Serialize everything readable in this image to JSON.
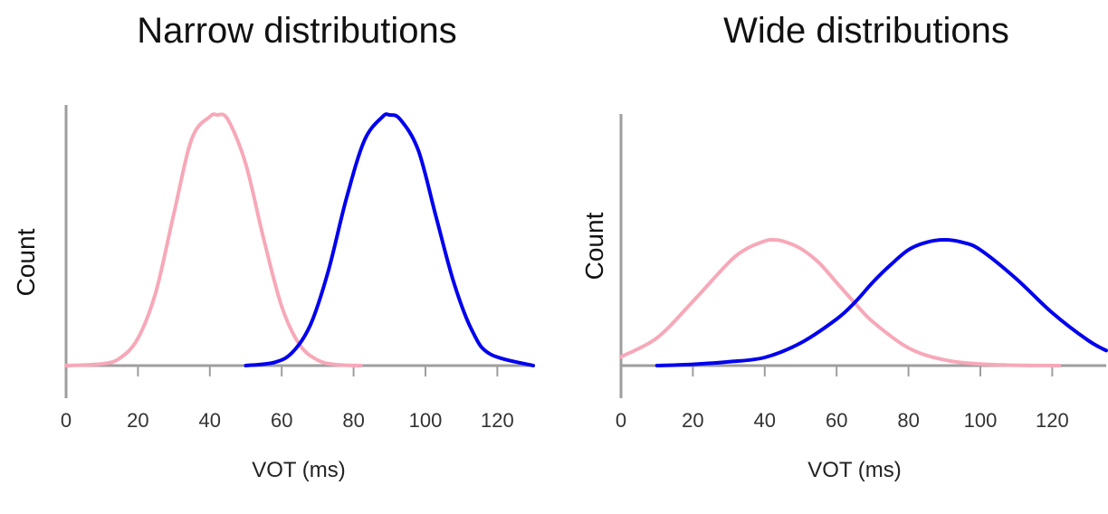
{
  "chart_data": [
    {
      "type": "line",
      "title": "Narrow distributions",
      "xlabel": "VOT (ms)",
      "ylabel": "Count",
      "xlim": [
        0,
        130
      ],
      "ylim": [
        0,
        1
      ],
      "x_ticks": [
        0,
        20,
        40,
        60,
        80,
        100,
        120
      ],
      "grid": false,
      "series": [
        {
          "color": "#f7a8b8",
          "x": [
            0,
            10,
            15,
            20,
            25,
            30,
            35,
            40,
            42,
            45,
            50,
            55,
            60,
            65,
            70,
            75,
            82
          ],
          "values": [
            0.0,
            0.007,
            0.03,
            0.109,
            0.295,
            0.607,
            0.906,
            0.993,
            1.0,
            0.982,
            0.804,
            0.504,
            0.236,
            0.083,
            0.022,
            0.004,
            0.0
          ]
        },
        {
          "color": "#0000ee",
          "x": [
            50,
            58,
            63,
            68,
            73,
            78,
            83,
            88,
            90,
            93,
            98,
            103,
            108,
            113,
            118,
            130
          ],
          "values": [
            0.0,
            0.013,
            0.053,
            0.163,
            0.379,
            0.667,
            0.898,
            0.992,
            1.0,
            0.982,
            0.859,
            0.591,
            0.326,
            0.139,
            0.046,
            0.0
          ]
        }
      ]
    },
    {
      "type": "line",
      "title": "Wide distributions",
      "xlabel": "VOT (ms)",
      "ylabel": "Count",
      "xlim": [
        0,
        135
      ],
      "ylim": [
        0,
        1
      ],
      "x_ticks": [
        0,
        20,
        40,
        60,
        80,
        100,
        120
      ],
      "grid": false,
      "series": [
        {
          "color": "#f7a8b8",
          "x": [
            0,
            10,
            20,
            30,
            35,
            40,
            42,
            45,
            50,
            55,
            60,
            65,
            70,
            80,
            90,
            100,
            110,
            122
          ],
          "values": [
            0.07,
            0.22,
            0.51,
            0.82,
            0.93,
            0.99,
            1.0,
            0.99,
            0.93,
            0.82,
            0.66,
            0.5,
            0.35,
            0.14,
            0.045,
            0.012,
            0.003,
            0.0
          ]
        },
        {
          "color": "#0000ee",
          "x": [
            10,
            20,
            30,
            40,
            50,
            60,
            65,
            70,
            75,
            80,
            85,
            90,
            95,
            100,
            110,
            120,
            130,
            135
          ],
          "values": [
            0.0,
            0.01,
            0.03,
            0.065,
            0.18,
            0.37,
            0.5,
            0.66,
            0.8,
            0.92,
            0.98,
            1.0,
            0.98,
            0.92,
            0.69,
            0.42,
            0.2,
            0.12
          ]
        }
      ]
    }
  ]
}
